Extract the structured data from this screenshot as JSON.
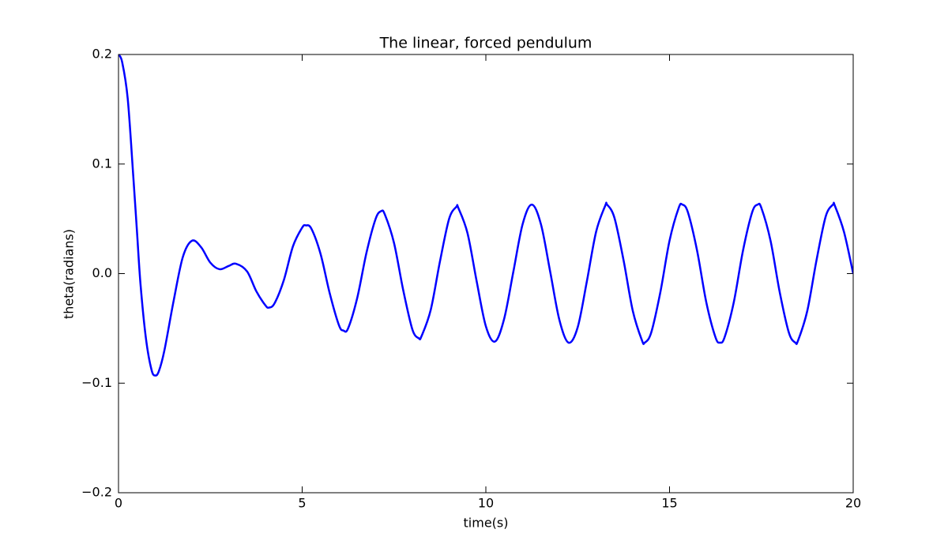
{
  "chart_data": {
    "type": "line",
    "title": "The linear, forced pendulum",
    "x_label": "time(s)",
    "y_label": "theta(radians)",
    "x": [
      0,
      0.1,
      0.25,
      0.4,
      0.5,
      0.6,
      0.75,
      0.9,
      1.0,
      1.1,
      1.25,
      1.5,
      1.75,
      2.0,
      2.25,
      2.5,
      2.75,
      3.0,
      3.2,
      3.5,
      3.75,
      4.0,
      4.1,
      4.25,
      4.5,
      4.75,
      5.0,
      5.1,
      5.25,
      5.5,
      5.75,
      6.0,
      6.125,
      6.25,
      6.5,
      6.75,
      7.0,
      7.15,
      7.25,
      7.5,
      7.75,
      8.0,
      8.175,
      8.25,
      8.5,
      8.75,
      9.0,
      9.2,
      9.25,
      9.5,
      9.75,
      10.0,
      10.25,
      10.5,
      10.75,
      11.0,
      11.25,
      11.5,
      11.75,
      12.0,
      12.25,
      12.5,
      12.75,
      13.0,
      13.25,
      13.3,
      13.5,
      13.75,
      14.0,
      14.25,
      14.325,
      14.5,
      14.75,
      15.0,
      15.25,
      15.35,
      15.5,
      15.75,
      16.0,
      16.25,
      16.375,
      16.5,
      16.75,
      17.0,
      17.25,
      17.4,
      17.5,
      17.75,
      18.0,
      18.25,
      18.425,
      18.5,
      18.75,
      19.0,
      19.25,
      19.45,
      19.5,
      19.75,
      20.0
    ],
    "series": [
      {
        "color": "#0000ff",
        "values": [
          0.2,
          0.193,
          0.16,
          0.09,
          0.04,
          -0.01,
          -0.06,
          -0.088,
          -0.093,
          -0.089,
          -0.07,
          -0.025,
          0.015,
          0.03,
          0.024,
          0.01,
          0.004,
          0.007,
          0.009,
          0.002,
          -0.016,
          -0.029,
          -0.031,
          -0.027,
          -0.006,
          0.025,
          0.042,
          0.044,
          0.041,
          0.018,
          -0.018,
          -0.047,
          -0.052,
          -0.05,
          -0.022,
          0.019,
          0.05,
          0.057,
          0.054,
          0.028,
          -0.015,
          -0.051,
          -0.059,
          -0.057,
          -0.033,
          0.011,
          0.05,
          0.061,
          0.06,
          0.037,
          -0.007,
          -0.048,
          -0.062,
          -0.041,
          0.002,
          0.045,
          0.063,
          0.045,
          0.002,
          -0.042,
          -0.063,
          -0.049,
          -0.007,
          0.038,
          0.062,
          0.063,
          0.051,
          0.012,
          -0.034,
          -0.061,
          -0.063,
          -0.054,
          -0.017,
          0.03,
          0.06,
          0.063,
          0.056,
          0.021,
          -0.026,
          -0.058,
          -0.063,
          -0.058,
          -0.026,
          0.021,
          0.056,
          0.063,
          0.06,
          0.03,
          -0.017,
          -0.054,
          -0.063,
          -0.061,
          -0.034,
          0.012,
          0.052,
          0.063,
          0.062,
          0.038,
          0.0
        ]
      }
    ],
    "xlim": [
      0,
      20
    ],
    "xticks": [
      0,
      5,
      10,
      15,
      20
    ],
    "ylim": [
      -0.2,
      0.2
    ],
    "yticks": [
      {
        "value": -0.2,
        "label": "−0.2"
      },
      {
        "value": -0.1,
        "label": "−0.1"
      },
      {
        "value": 0,
        "label": "0.0"
      },
      0.1,
      0.2
    ],
    "grid": false
  }
}
